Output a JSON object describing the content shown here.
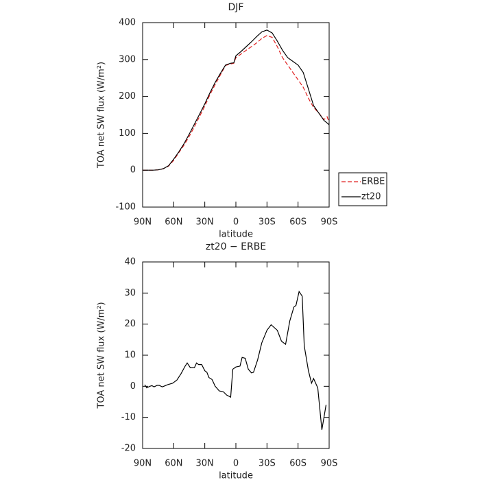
{
  "chart_data": [
    {
      "type": "line",
      "title": "DJF",
      "x_label": "latitude",
      "y_label": "TOA net SW flux (W/m²)",
      "x": [
        90,
        85,
        80,
        75,
        70,
        65,
        60,
        55,
        50,
        45,
        40,
        35,
        30,
        25,
        20,
        15,
        10,
        5,
        2,
        0,
        -5,
        -10,
        -15,
        -20,
        -25,
        -30,
        -35,
        -40,
        -45,
        -50,
        -55,
        -60,
        -65,
        -70,
        -75,
        -80,
        -85,
        -88,
        -90
      ],
      "series": [
        {
          "name": "ERBE",
          "color": "#e02020",
          "linestyle": "dashed",
          "values": [
            0,
            0,
            0,
            1,
            4,
            11,
            27,
            48,
            68,
            92,
            118,
            146,
            174,
            205,
            232,
            258,
            284,
            288,
            290,
            305,
            315,
            325,
            335,
            345,
            357,
            365,
            360,
            335,
            305,
            285,
            265,
            245,
            225,
            195,
            170,
            155,
            137,
            145,
            130
          ]
        },
        {
          "name": "zt20",
          "color": "#000000",
          "linestyle": "solid",
          "values": [
            0,
            0,
            0,
            1,
            4,
            12,
            30,
            50,
            72,
            98,
            125,
            152,
            180,
            210,
            238,
            262,
            285,
            290,
            291,
            310,
            322,
            335,
            348,
            362,
            375,
            380,
            372,
            350,
            325,
            305,
            295,
            285,
            265,
            220,
            175,
            155,
            135,
            128,
            123
          ]
        }
      ],
      "xlim": [
        90,
        -90
      ],
      "xticks": [
        {
          "value": 90,
          "label": "90N"
        },
        {
          "value": 60,
          "label": "60N"
        },
        {
          "value": 30,
          "label": "30N"
        },
        0,
        {
          "value": -30,
          "label": "30S"
        },
        {
          "value": -60,
          "label": "60S"
        },
        {
          "value": -90,
          "label": "90S"
        }
      ],
      "ylim": [
        -100,
        400
      ],
      "yticks": [
        -100,
        0,
        100,
        200,
        300,
        400
      ],
      "legend": "right"
    },
    {
      "type": "line",
      "title": "zt20 − ERBE",
      "x_label": "latitude",
      "y_label": "TOA net SW flux (W/m²)",
      "x": [
        88,
        86,
        83,
        81,
        79,
        76,
        74,
        71,
        66,
        61,
        57,
        53,
        49,
        47,
        44,
        40,
        38,
        36,
        33,
        30,
        28,
        26,
        23,
        20,
        16,
        12,
        9,
        5,
        3,
        0,
        -4,
        -6,
        -9,
        -12,
        -15,
        -17,
        -21,
        -25,
        -30,
        -34,
        -40,
        -44,
        -48,
        -52,
        -56,
        -58,
        -61,
        -64,
        -66,
        -70,
        -73,
        -75,
        -79,
        -83,
        -87
      ],
      "series": [
        {
          "name": "zt20 − ERBE",
          "color": "#000000",
          "linestyle": "solid",
          "values": [
            0.5,
            -0.5,
            0,
            0.2,
            -0.2,
            0.3,
            0.3,
            -0.2,
            0.5,
            1,
            2,
            4,
            6.5,
            7.5,
            6,
            6,
            7.5,
            7,
            7,
            5,
            4.5,
            2.8,
            2.2,
            0,
            -1.5,
            -1.8,
            -2.8,
            -3.5,
            5.5,
            6.2,
            6.5,
            9.3,
            9,
            5.5,
            4.3,
            4.5,
            8.5,
            14,
            18,
            19.8,
            18,
            14.5,
            13.5,
            21,
            25.5,
            26,
            30.5,
            29,
            13,
            5,
            1,
            2.5,
            -0.5,
            -14,
            -6
          ]
        }
      ],
      "xlim": [
        90,
        -90
      ],
      "xticks": [
        {
          "value": 90,
          "label": "90N"
        },
        {
          "value": 60,
          "label": "60N"
        },
        {
          "value": 30,
          "label": "30N"
        },
        0,
        {
          "value": -30,
          "label": "30S"
        },
        {
          "value": -60,
          "label": "60S"
        },
        {
          "value": -90,
          "label": "90S"
        }
      ],
      "ylim": [
        -20,
        40
      ],
      "yticks": [
        -20,
        -10,
        0,
        10,
        20,
        30,
        40
      ]
    }
  ]
}
